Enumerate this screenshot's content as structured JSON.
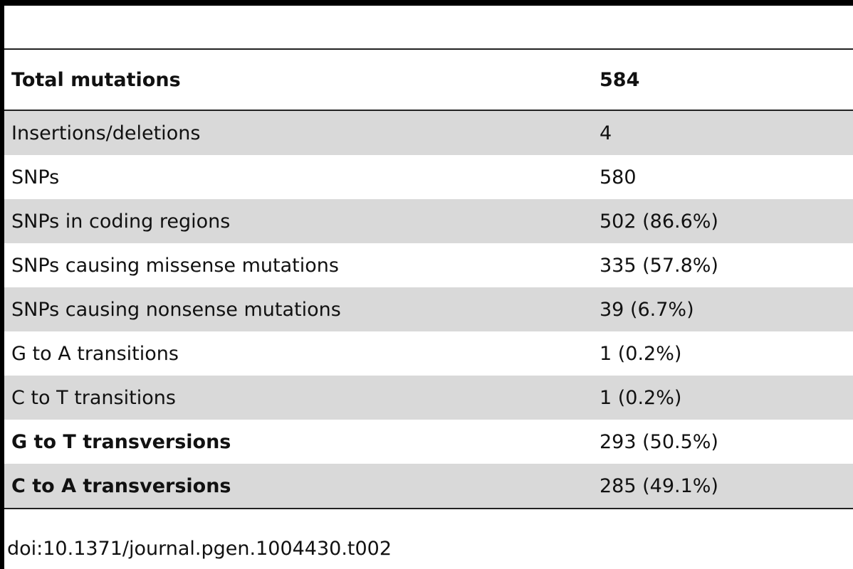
{
  "table": {
    "header": {
      "label": "Total mutations",
      "value": "584"
    },
    "rows": [
      {
        "label": "Insertions/deletions",
        "value": "4"
      },
      {
        "label": "SNPs",
        "value": "580"
      },
      {
        "label": "SNPs in coding regions",
        "value": "502 (86.6%)"
      },
      {
        "label": "SNPs causing missense mutations",
        "value": "335 (57.8%)"
      },
      {
        "label": "SNPs causing nonsense mutations",
        "value": "39 (6.7%)"
      },
      {
        "label": "G to A transitions",
        "value": "1 (0.2%)"
      },
      {
        "label": "C to T transitions",
        "value": "1 (0.2%)"
      },
      {
        "label": "G to T transversions",
        "value": "293 (50.5%)"
      },
      {
        "label": "C to A transversions",
        "value": "285 (49.1%)"
      }
    ]
  },
  "footer": {
    "doi": "doi:10.1371/journal.pgen.1004430.t002"
  }
}
